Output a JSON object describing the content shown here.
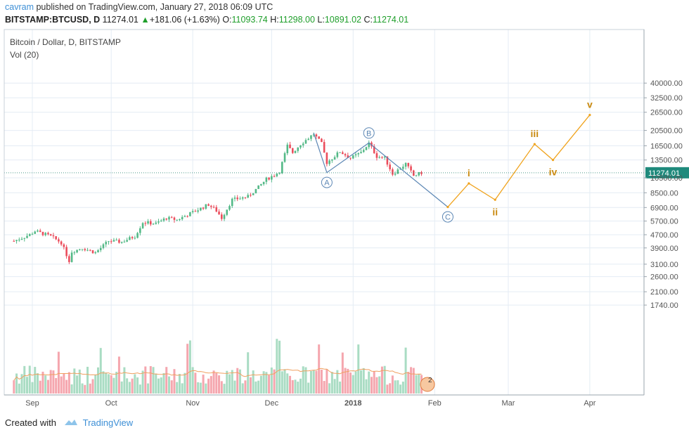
{
  "header": {
    "publisher": "cavram",
    "published_text": "published on TradingView.com, January 27, 2018 06:09 UTC",
    "symbol": "BITSTAMP:BTCUSD, D",
    "last": "11274.01",
    "change": "+181.06 (+1.63%)",
    "o_label": "O:",
    "o_value": "11093.74",
    "h_label": "H:",
    "h_value": "11298.00",
    "l_label": "L:",
    "l_value": "10891.02",
    "c_label": "C:",
    "c_value": "11274.01"
  },
  "chart_data": {
    "type": "candlestick",
    "title": "Bitcoin / Dollar, D, BITSTAMP",
    "indicator": "Vol (20)",
    "price_scale": "log",
    "y_ticks": [
      "40000.00",
      "32500.00",
      "26500.00",
      "20500.00",
      "16500.00",
      "13500.00",
      "10500.00",
      "8500.00",
      "6900.00",
      "5700.00",
      "4700.00",
      "3900.00",
      "3100.00",
      "2600.00",
      "2100.00",
      "1740.00"
    ],
    "x_ticks": [
      "Sep",
      "Oct",
      "Nov",
      "Dec",
      "2018",
      "Feb",
      "Mar",
      "Apr"
    ],
    "last_price_label": "11274.01",
    "colors": {
      "up": "#53b987",
      "down": "#eb4d5c",
      "vol_up": "#a9dcc3",
      "vol_down": "#f5a6ae",
      "wave": "#f0a31d",
      "wave_label": "#c98a10",
      "abc": "#5b86b4",
      "grid": "#e4ecf4",
      "vol_ma": "#f0a060",
      "last_line": "#4c9a8a"
    },
    "price_path": [
      [
        "2017-08-25",
        4300
      ],
      [
        "2017-08-31",
        4700
      ],
      [
        "2017-09-02",
        4950
      ],
      [
        "2017-09-08",
        4600
      ],
      [
        "2017-09-12",
        4200
      ],
      [
        "2017-09-15",
        3250
      ],
      [
        "2017-09-16",
        3700
      ],
      [
        "2017-09-20",
        3900
      ],
      [
        "2017-09-25",
        3650
      ],
      [
        "2017-09-30",
        4300
      ],
      [
        "2017-10-05",
        4250
      ],
      [
        "2017-10-10",
        4600
      ],
      [
        "2017-10-13",
        5600
      ],
      [
        "2017-10-18",
        5500
      ],
      [
        "2017-10-22",
        5950
      ],
      [
        "2017-10-26",
        5800
      ],
      [
        "2017-11-01",
        6450
      ],
      [
        "2017-11-07",
        7200
      ],
      [
        "2017-11-10",
        6600
      ],
      [
        "2017-11-12",
        5950
      ],
      [
        "2017-11-16",
        7700
      ],
      [
        "2017-11-22",
        8050
      ],
      [
        "2017-11-26",
        9200
      ],
      [
        "2017-11-29",
        10300
      ],
      [
        "2017-12-02",
        10900
      ],
      [
        "2017-12-04",
        11500
      ],
      [
        "2017-12-07",
        16500
      ],
      [
        "2017-12-09",
        15000
      ],
      [
        "2017-12-12",
        16900
      ],
      [
        "2017-12-17",
        19500
      ],
      [
        "2017-12-20",
        17000
      ],
      [
        "2017-12-22",
        13000
      ],
      [
        "2017-12-27",
        15200
      ],
      [
        "2017-12-31",
        13850
      ],
      [
        "2018-01-04",
        15000
      ],
      [
        "2018-01-07",
        17100
      ],
      [
        "2018-01-10",
        14200
      ],
      [
        "2018-01-13",
        13900
      ],
      [
        "2018-01-16",
        11100
      ],
      [
        "2018-01-18",
        11700
      ],
      [
        "2018-01-21",
        12800
      ],
      [
        "2018-01-24",
        10800
      ],
      [
        "2018-01-27",
        11274
      ]
    ],
    "abc_points": [
      {
        "label": "A",
        "date": "2017-12-22",
        "price": 11300
      },
      {
        "label": "B",
        "date": "2018-01-07",
        "price": 17200
      },
      {
        "label": "C",
        "date": "2018-02-06",
        "price": 6950
      }
    ],
    "wave_points": [
      {
        "label": "",
        "date": "2018-02-06",
        "price": 6950
      },
      {
        "label": "i",
        "date": "2018-02-14",
        "price": 9700
      },
      {
        "label": "ii",
        "date": "2018-02-24",
        "price": 7700
      },
      {
        "label": "iii",
        "date": "2018-03-11",
        "price": 16900
      },
      {
        "label": "iv",
        "date": "2018-03-18",
        "price": 13500
      },
      {
        "label": "v",
        "date": "2018-04-01",
        "price": 25500
      }
    ]
  },
  "footer": {
    "created_with": "Created with",
    "brand": "TradingView"
  }
}
